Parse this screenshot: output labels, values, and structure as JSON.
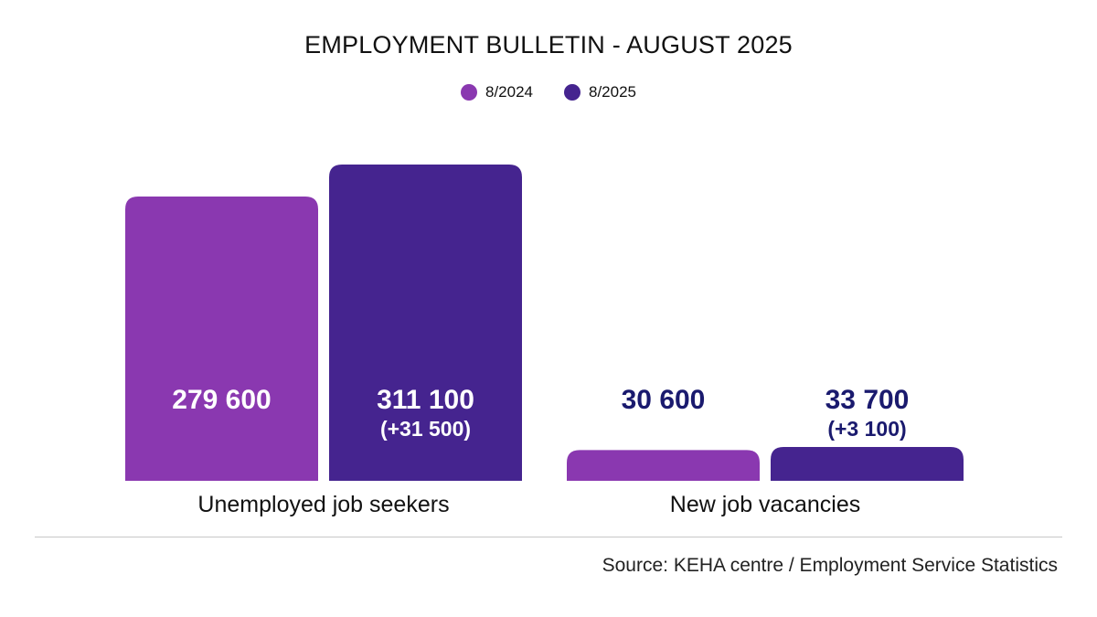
{
  "title": "EMPLOYMENT BULLETIN - AUGUST 2025",
  "source": "Source: KEHA centre / Employment Service Statistics",
  "colors": {
    "series_2024": "#8a38b0",
    "series_2025": "#45248f",
    "label_on_bar": "#ffffff",
    "label_above_bar": "#1a1a6e"
  },
  "chart_data": {
    "type": "bar",
    "title": "EMPLOYMENT BULLETIN - AUGUST 2025",
    "categories": [
      "Unemployed job seekers",
      "New job vacancies"
    ],
    "legend_position": "top-center",
    "grid": false,
    "series": [
      {
        "name": "8/2024",
        "values": [
          279600,
          30600
        ],
        "value_labels": [
          "279 600",
          "30 600"
        ],
        "change_labels": [
          "",
          ""
        ]
      },
      {
        "name": "8/2025",
        "values": [
          311100,
          33700
        ],
        "value_labels": [
          "311 100",
          "33 700"
        ],
        "change_labels": [
          "(+31 500)",
          "(+3 100)"
        ]
      }
    ]
  }
}
